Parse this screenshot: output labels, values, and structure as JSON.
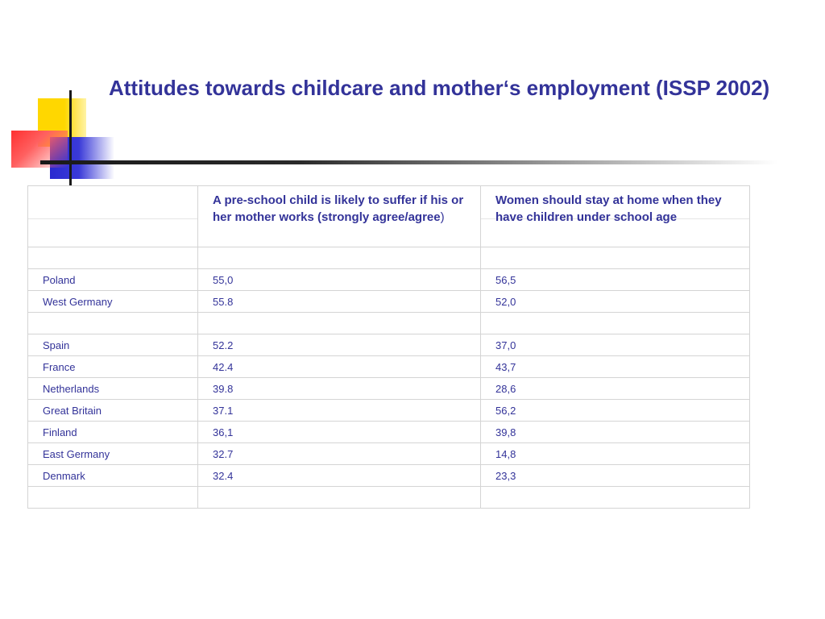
{
  "title": "Attitudes towards childcare and mother‘s employment (ISSP 2002)",
  "table": {
    "headers": [
      "",
      "A pre-school child is likely to suffer if his or her mother works (strongly agree/agree",
      "Women should stay at home when they have children under school age"
    ],
    "header_close_paren": ")",
    "rows": [
      [
        "",
        "",
        ""
      ],
      [
        "Poland",
        "55,0",
        "56,5"
      ],
      [
        "West Germany",
        "55.8",
        "52,0"
      ],
      [
        "",
        "",
        ""
      ],
      [
        "Spain",
        "52.2",
        "37,0"
      ],
      [
        "France",
        "42.4",
        "43,7"
      ],
      [
        "Netherlands",
        "39.8",
        "28,6"
      ],
      [
        "Great Britain",
        "37.1",
        "56,2"
      ],
      [
        "Finland",
        "36,1",
        "39,8"
      ],
      [
        "East Germany",
        "32.7",
        "14,8"
      ],
      [
        "Denmark",
        "32.4",
        "23,3"
      ],
      [
        "",
        "",
        ""
      ]
    ]
  },
  "colors": {
    "text": "#333399",
    "logo_yellow": "#ffd700",
    "logo_blue": "#2a2ad0",
    "logo_red": "#ff3030"
  }
}
